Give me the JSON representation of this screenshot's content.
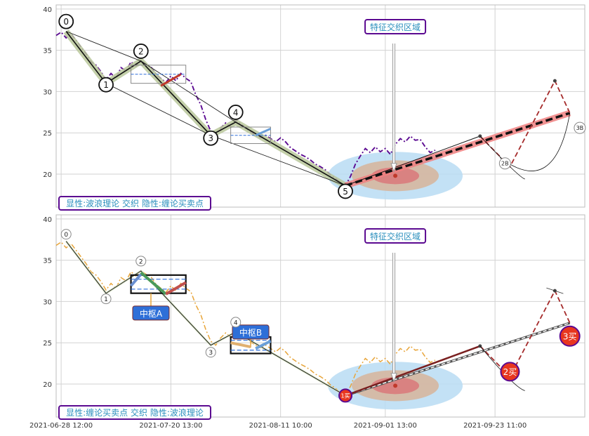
{
  "chart_data": [
    {
      "type": "line",
      "panel": "top",
      "ylim": [
        16,
        40.5
      ],
      "yticks": [
        20,
        25,
        30,
        35,
        40
      ],
      "grid": true,
      "xlim": [
        "2021-06-27",
        "2021-10-11"
      ],
      "xticks": [
        {
          "date": "2021-06-28",
          "label": "2021-06-28 12:00"
        },
        {
          "date": "2021-07-20",
          "label": "2021-07-20 13:00"
        },
        {
          "date": "2021-08-11",
          "label": "2021-08-11 10:00"
        },
        {
          "date": "2021-09-01",
          "label": "2021-09-01 13:00"
        },
        {
          "date": "2021-09-23",
          "label": "2021-09-23 11:00"
        }
      ],
      "price_series": {
        "color": "#5b0a91",
        "style": "dash-dot",
        "points": [
          [
            "2021-06-27",
            36.8
          ],
          [
            "2021-06-28",
            37.2
          ],
          [
            "2021-06-29",
            36.5
          ],
          [
            "2021-06-30",
            37.0
          ],
          [
            "2021-07-01",
            36.2
          ],
          [
            "2021-07-02",
            35.4
          ],
          [
            "2021-07-03",
            34.6
          ],
          [
            "2021-07-04",
            33.6
          ],
          [
            "2021-07-05",
            33.2
          ],
          [
            "2021-07-06",
            32.4
          ],
          [
            "2021-07-07",
            31.4
          ],
          [
            "2021-07-08",
            32.2
          ],
          [
            "2021-07-09",
            31.6
          ],
          [
            "2021-07-10",
            32.9
          ],
          [
            "2021-07-11",
            32.5
          ],
          [
            "2021-07-12",
            33.6
          ],
          [
            "2021-07-13",
            33.1
          ],
          [
            "2021-07-14",
            33.7
          ],
          [
            "2021-07-15",
            33.3
          ],
          [
            "2021-07-16",
            33.0
          ],
          [
            "2021-07-17",
            32.1
          ],
          [
            "2021-07-18",
            31.6
          ],
          [
            "2021-07-19",
            31.1
          ],
          [
            "2021-07-20",
            31.9
          ],
          [
            "2021-07-21",
            31.3
          ],
          [
            "2021-07-22",
            32.2
          ],
          [
            "2021-07-23",
            31.6
          ],
          [
            "2021-07-24",
            31.2
          ],
          [
            "2021-07-25",
            29.6
          ],
          [
            "2021-07-26",
            28.4
          ],
          [
            "2021-07-27",
            26.6
          ],
          [
            "2021-07-28",
            25.2
          ],
          [
            "2021-07-29",
            24.7
          ],
          [
            "2021-07-30",
            25.6
          ],
          [
            "2021-07-31",
            26.2
          ],
          [
            "2021-08-01",
            25.7
          ],
          [
            "2021-08-02",
            26.6
          ],
          [
            "2021-08-03",
            26.1
          ],
          [
            "2021-08-04",
            25.6
          ],
          [
            "2021-08-05",
            25.1
          ],
          [
            "2021-08-06",
            24.7
          ],
          [
            "2021-08-07",
            24.4
          ],
          [
            "2021-08-08",
            24.7
          ],
          [
            "2021-08-09",
            24.3
          ],
          [
            "2021-08-10",
            23.9
          ],
          [
            "2021-08-11",
            24.4
          ],
          [
            "2021-08-12",
            23.9
          ],
          [
            "2021-08-13",
            23.2
          ],
          [
            "2021-08-14",
            22.8
          ],
          [
            "2021-08-15",
            22.4
          ],
          [
            "2021-08-16",
            22.1
          ],
          [
            "2021-08-17",
            21.7
          ],
          [
            "2021-08-18",
            21.2
          ],
          [
            "2021-08-19",
            20.9
          ],
          [
            "2021-08-20",
            20.5
          ],
          [
            "2021-08-21",
            19.9
          ],
          [
            "2021-08-22",
            19.5
          ],
          [
            "2021-08-23",
            18.9
          ],
          [
            "2021-08-24",
            18.6
          ],
          [
            "2021-08-25",
            19.7
          ],
          [
            "2021-08-26",
            21.2
          ],
          [
            "2021-08-27",
            22.2
          ],
          [
            "2021-08-28",
            23.1
          ],
          [
            "2021-08-29",
            22.6
          ],
          [
            "2021-08-30",
            23.3
          ],
          [
            "2021-08-31",
            22.7
          ],
          [
            "2021-09-01",
            23.1
          ],
          [
            "2021-09-02",
            22.4
          ],
          [
            "2021-09-03",
            23.6
          ],
          [
            "2021-09-04",
            24.3
          ],
          [
            "2021-09-05",
            23.9
          ],
          [
            "2021-09-06",
            24.6
          ],
          [
            "2021-09-07",
            24.1
          ],
          [
            "2021-09-08",
            24.2
          ],
          [
            "2021-09-09",
            23.3
          ],
          [
            "2021-09-10",
            22.6
          ],
          [
            "2021-09-11",
            22.9
          ]
        ]
      },
      "wave_labels": [
        {
          "label": "0",
          "date": "2021-06-29",
          "price": 37.3
        },
        {
          "label": "1",
          "date": "2021-07-07",
          "price": 31.0
        },
        {
          "label": "2",
          "date": "2021-07-14",
          "price": 33.7
        },
        {
          "label": "3",
          "date": "2021-07-28",
          "price": 24.7
        },
        {
          "label": "4",
          "date": "2021-08-02",
          "price": 26.3
        },
        {
          "label": "5",
          "date": "2021-08-24",
          "price": 18.6
        }
      ],
      "annotation": "特征交织区域",
      "panel_note": "显性:波浪理论 交织 隐性:缠论买卖点",
      "projection_labels": [
        "2B",
        "3B"
      ],
      "projection_points": [
        {
          "date": "2021-09-20",
          "price": 24.6
        },
        {
          "date": "2021-09-26",
          "price": 20.9
        },
        {
          "date": "2021-10-05",
          "price": 31.3
        },
        {
          "date": "2021-10-08",
          "price": 27.4
        }
      ]
    },
    {
      "type": "line",
      "panel": "bottom",
      "ylim": [
        16,
        40.5
      ],
      "yticks": [
        20,
        25,
        30,
        35,
        40
      ],
      "grid": true,
      "xlim": [
        "2021-06-27",
        "2021-10-11"
      ],
      "xticks": [
        {
          "date": "2021-06-28",
          "label": "2021-06-28 12:00"
        },
        {
          "date": "2021-07-20",
          "label": "2021-07-20 13:00"
        },
        {
          "date": "2021-08-11",
          "label": "2021-08-11 10:00"
        },
        {
          "date": "2021-09-01",
          "label": "2021-09-01 13:00"
        },
        {
          "date": "2021-09-23",
          "label": "2021-09-23 11:00"
        }
      ],
      "price_series": {
        "color": "#e8a53a",
        "style": "dash-dot"
      },
      "wave_labels": [
        {
          "label": "0",
          "date": "2021-06-29",
          "price": 37.3
        },
        {
          "label": "1",
          "date": "2021-07-07",
          "price": 31.0
        },
        {
          "label": "2",
          "date": "2021-07-14",
          "price": 33.7
        },
        {
          "label": "3",
          "date": "2021-07-28",
          "price": 24.7
        },
        {
          "label": "4",
          "date": "2021-08-02",
          "price": 26.3
        }
      ],
      "zhongshu": [
        {
          "label": "中枢A",
          "from": "2021-07-12",
          "to": "2021-07-23",
          "low": 31.0,
          "high": 33.2
        },
        {
          "label": "中枢B",
          "from": "2021-08-01",
          "to": "2021-08-09",
          "low": 23.7,
          "high": 25.7
        }
      ],
      "buy_points": [
        "1买",
        "2买",
        "3买"
      ],
      "annotation": "特征交织区域",
      "panel_note": "显性:缠论买卖点 交织 隐性:波浪理论"
    }
  ],
  "colors": {
    "purple": "#5b0a91",
    "orange": "#e8a53a",
    "accent_blue": "#2e6fd8",
    "buy_red": "#e8361f",
    "note_text": "#2a8fbd"
  }
}
